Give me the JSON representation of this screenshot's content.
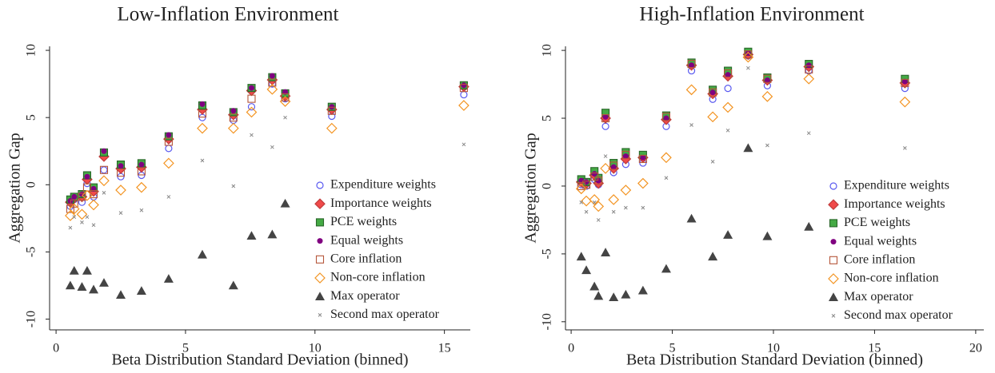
{
  "chart_data": [
    {
      "type": "scatter",
      "title": "Low-Inflation Environment",
      "x_label": "Beta Distribution Standard Deviation (binned)",
      "y_label": "Aggregation Gap",
      "xlim": [
        -0.25,
        16
      ],
      "ylim": [
        -10.8,
        10.3
      ],
      "xticks": [
        0,
        5,
        10,
        15
      ],
      "yticks": [
        -10,
        -5,
        0,
        5,
        10
      ],
      "grid": false,
      "legend": "lower right",
      "x": [
        0.55,
        0.7,
        1,
        1.2,
        1.45,
        1.85,
        2.5,
        3.3,
        4.35,
        5.65,
        6.85,
        7.55,
        8.35,
        8.85,
        10.65,
        15.75
      ],
      "series": [
        {
          "name": "Expenditure weights",
          "color": "#5a5af0",
          "marker": "open-circle",
          "values": [
            -1.6,
            -1.1,
            -1.3,
            0.1,
            -0.9,
            1.1,
            0.6,
            0.7,
            2.7,
            5.0,
            4.8,
            5.8,
            7.5,
            6.4,
            5.1,
            6.7
          ]
        },
        {
          "name": "Importance weights",
          "color": "#f04a4a",
          "marker": "filled-diamond",
          "values": [
            -1.3,
            -1.0,
            -0.9,
            0.4,
            -0.5,
            2.1,
            1.2,
            1.3,
            3.4,
            5.6,
            5.2,
            7.0,
            7.8,
            6.6,
            5.6,
            7.3
          ]
        },
        {
          "name": "PCE weights",
          "color": "#44aa44",
          "marker": "filled-square",
          "values": [
            -1.1,
            -0.9,
            -0.7,
            0.7,
            -0.2,
            2.4,
            1.5,
            1.6,
            3.6,
            5.9,
            5.4,
            7.2,
            8.0,
            6.8,
            5.8,
            7.4
          ]
        },
        {
          "name": "Equal weights",
          "color": "#800080",
          "marker": "filled-circle",
          "values": [
            -1.2,
            -0.9,
            -0.7,
            0.6,
            -0.3,
            2.5,
            1.4,
            1.5,
            3.7,
            6.0,
            5.5,
            7.2,
            8.1,
            6.9,
            5.8,
            7.4
          ]
        },
        {
          "name": "Core inflation",
          "color": "#b5563a",
          "marker": "open-square",
          "values": [
            -1.8,
            -1.4,
            -0.9,
            -0.2,
            -0.7,
            1.1,
            0.9,
            1.0,
            3.2,
            5.3,
            5.0,
            6.4,
            7.6,
            6.5,
            5.5,
            7.2
          ]
        },
        {
          "name": "Non-core inflation",
          "color": "#f39422",
          "marker": "open-diamond",
          "values": [
            -2.3,
            -1.8,
            -2.2,
            -0.8,
            -1.5,
            0.3,
            -0.4,
            -0.2,
            1.6,
            4.2,
            4.2,
            5.4,
            7.1,
            6.2,
            4.2,
            5.9
          ]
        },
        {
          "name": "Max operator",
          "color": "#444444",
          "marker": "filled-triangle",
          "values": [
            -7.5,
            -6.4,
            -7.6,
            -6.4,
            -7.8,
            -7.3,
            -8.2,
            -7.9,
            -7.0,
            -5.2,
            -7.5,
            -3.8,
            -3.7,
            -1.4,
            null,
            null
          ]
        },
        {
          "name": "Second max operator",
          "color": "#888888",
          "marker": "cross",
          "values": [
            -3.2,
            -2.4,
            -2.8,
            -2.4,
            -3.0,
            -0.6,
            -2.1,
            -1.9,
            -0.9,
            1.8,
            -0.1,
            3.7,
            2.8,
            5.0,
            null,
            3.0
          ]
        }
      ]
    },
    {
      "type": "scatter",
      "title": "High-Inflation Environment",
      "x_label": "Beta Distribution Standard Deviation (binned)",
      "y_label": "Aggregation Gap",
      "xlim": [
        -0.28,
        20.4
      ],
      "ylim": [
        -10.6,
        10.3
      ],
      "xticks": [
        0,
        5,
        10,
        15,
        20
      ],
      "yticks": [
        -10,
        -5,
        0,
        5,
        10
      ],
      "grid": false,
      "legend": "lower right",
      "x": [
        0.5,
        0.75,
        1.15,
        1.35,
        1.7,
        2.1,
        2.7,
        3.55,
        4.7,
        5.95,
        7.0,
        7.75,
        8.75,
        9.7,
        11.75,
        16.5
      ],
      "series": [
        {
          "name": "Expenditure weights",
          "color": "#5a5af0",
          "marker": "open-circle",
          "values": [
            0.1,
            0.0,
            0.5,
            0.1,
            4.4,
            1.0,
            1.6,
            1.7,
            4.4,
            8.5,
            6.4,
            7.2,
            9.6,
            7.4,
            8.5,
            7.2
          ]
        },
        {
          "name": "Importance weights",
          "color": "#f04a4a",
          "marker": "filled-diamond",
          "values": [
            0.3,
            0.2,
            0.8,
            0.2,
            5.0,
            1.3,
            2.0,
            2.1,
            4.9,
            8.9,
            6.8,
            8.1,
            9.7,
            7.8,
            8.8,
            7.6
          ]
        },
        {
          "name": "PCE weights",
          "color": "#44aa44",
          "marker": "filled-square",
          "values": [
            0.5,
            0.3,
            1.1,
            0.6,
            5.4,
            1.7,
            2.5,
            2.3,
            5.2,
            9.1,
            7.1,
            8.5,
            9.9,
            8.0,
            9.0,
            7.9
          ]
        },
        {
          "name": "Equal weights",
          "color": "#800080",
          "marker": "filled-circle",
          "values": [
            0.4,
            0.3,
            0.9,
            0.4,
            5.1,
            1.4,
            2.2,
            2.1,
            5.0,
            8.9,
            6.9,
            8.2,
            9.8,
            7.8,
            8.9,
            7.7
          ]
        },
        {
          "name": "Core inflation",
          "color": "#b5563a",
          "marker": "open-square",
          "values": [
            0.0,
            0.1,
            0.7,
            0.4,
            5.0,
            1.5,
            2.3,
            2.0,
            5.1,
            9.0,
            6.9,
            8.3,
            9.7,
            7.9,
            8.6,
            7.6
          ]
        },
        {
          "name": "Non-core inflation",
          "color": "#f39422",
          "marker": "open-diamond",
          "values": [
            -0.2,
            -1.1,
            -1.0,
            -1.5,
            1.3,
            -1.0,
            -0.3,
            0.2,
            2.1,
            7.1,
            5.1,
            5.8,
            9.5,
            6.6,
            7.9,
            6.2
          ]
        },
        {
          "name": "Max operator",
          "color": "#444444",
          "marker": "filled-triangle",
          "values": [
            -5.2,
            -6.2,
            -7.4,
            -8.1,
            -4.9,
            -8.2,
            -8.0,
            -7.7,
            -6.1,
            -2.4,
            -5.2,
            -3.6,
            2.8,
            -3.7,
            -3.0,
            null
          ]
        },
        {
          "name": "Second max operator",
          "color": "#888888",
          "marker": "cross",
          "values": [
            -1.2,
            -1.9,
            -1.2,
            -2.5,
            2.2,
            -1.9,
            -1.6,
            -1.6,
            0.6,
            4.5,
            1.8,
            4.1,
            8.7,
            3.0,
            3.9,
            2.8
          ]
        }
      ]
    }
  ]
}
